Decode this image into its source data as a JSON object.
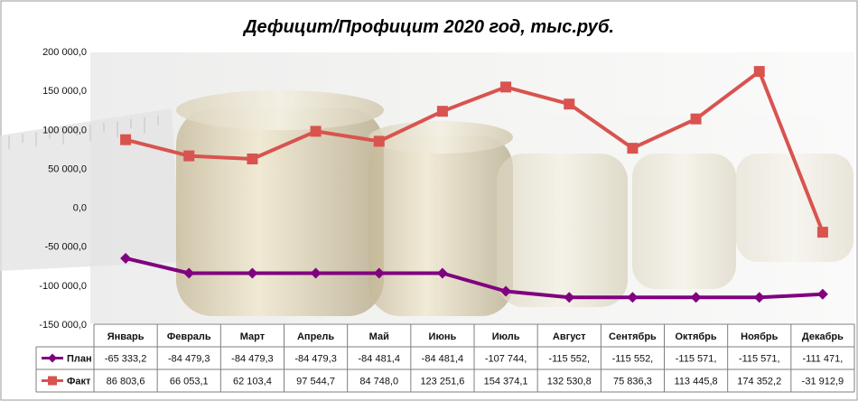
{
  "chart_data": {
    "type": "line",
    "title": "Дефицит/Профицит 2020 год, тыс.руб.",
    "categories": [
      "Январь",
      "Февраль",
      "Март",
      "Апрель",
      "Май",
      "Июнь",
      "Июль",
      "Август",
      "Сентябрь",
      "Октябрь",
      "Ноябрь",
      "Декабрь"
    ],
    "ylim": [
      -150000,
      200000
    ],
    "yticks": [
      200000,
      150000,
      100000,
      50000,
      0,
      -50000,
      -100000,
      -150000
    ],
    "ytick_labels": [
      "200 000,0",
      "150 000,0",
      "100 000,0",
      "50 000,0",
      "0,0",
      "-50 000,0",
      "-100 000,0",
      "-150 000,0"
    ],
    "grid": false,
    "legend_placement": "data-table",
    "series": [
      {
        "name": "План",
        "color": "#800080",
        "marker": "diamond",
        "values": [
          -65333.2,
          -84479.3,
          -84479.3,
          -84479.3,
          -84481.4,
          -84481.4,
          -107744,
          -115552,
          -115552,
          -115571,
          -115571,
          -111471
        ],
        "table_labels": [
          "-65 333,2",
          "-84 479,3",
          "-84 479,3",
          "-84 479,3",
          "-84 481,4",
          "-84 481,4",
          "-107 744,",
          "-115 552,",
          "-115 552,",
          "-115 571,",
          "-115 571,",
          "-111 471,"
        ]
      },
      {
        "name": "Факт",
        "color": "#D9534F",
        "marker": "square",
        "values": [
          86803.6,
          66053.1,
          62103.4,
          97544.7,
          84748.0,
          123251.6,
          154374.1,
          132530.8,
          75836.3,
          113445.8,
          174352.2,
          -31912.9
        ],
        "table_labels": [
          "86 803,6",
          "66 053,1",
          "62 103,4",
          "97 544,7",
          "84 748,0",
          "123 251,6",
          "154 374,1",
          "132 530,8",
          "75 836,3",
          "113 445,8",
          "174 352,2",
          "-31 912,9"
        ]
      }
    ]
  }
}
